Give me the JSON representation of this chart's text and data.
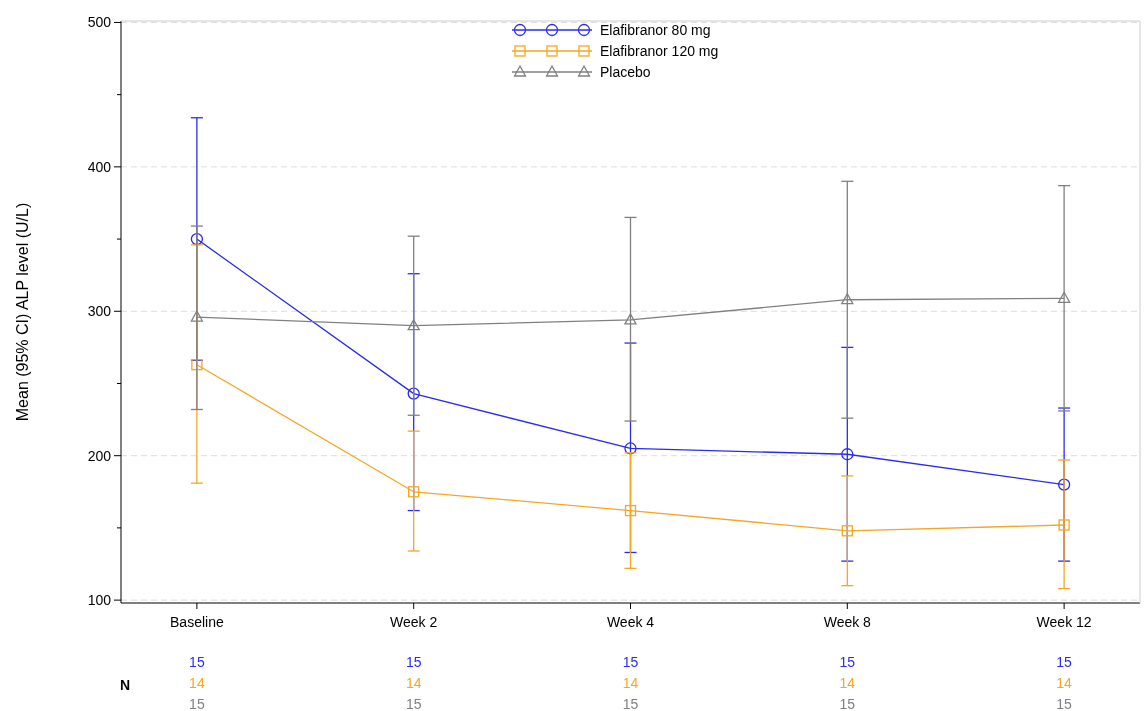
{
  "chart_data": {
    "type": "line",
    "ylabel": "Mean (95% CI) ALP level (U/L)",
    "categories": [
      "Baseline",
      "Week 2",
      "Week 4",
      "Week 8",
      "Week 12"
    ],
    "ylim": [
      98,
      501
    ],
    "yticks": [
      100,
      {
        "value": 150,
        "label": null
      },
      200,
      {
        "value": 250,
        "label": null
      },
      300,
      {
        "value": 350,
        "label": null
      },
      400,
      {
        "value": 450,
        "label": null
      },
      500
    ],
    "grid": "y",
    "legend": "top",
    "line_style": "solid",
    "series": [
      {
        "name": "Elafibranor 80 mg",
        "color": "#2b2bf0",
        "marker": "circle",
        "values": [
          350,
          243,
          205,
          201,
          180
        ],
        "errors": [
          [
            266,
            434
          ],
          [
            162,
            326
          ],
          [
            133,
            278
          ],
          [
            127,
            275
          ],
          [
            127,
            233
          ]
        ]
      },
      {
        "name": "Elafibranor 120 mg",
        "color": "#f5a623",
        "marker": "square",
        "values": [
          263,
          175,
          162,
          148,
          152
        ],
        "errors": [
          [
            181,
            346
          ],
          [
            134,
            217
          ],
          [
            122,
            202
          ],
          [
            110,
            186
          ],
          [
            108,
            197
          ]
        ]
      },
      {
        "name": "Placebo",
        "color": "#808080",
        "marker": "triangle",
        "values": [
          296,
          290,
          294,
          308,
          309
        ],
        "errors": [
          [
            232,
            359
          ],
          [
            228,
            352
          ],
          [
            224,
            365
          ],
          [
            226,
            390
          ],
          [
            231,
            387
          ]
        ]
      }
    ],
    "annotations": [
      "N",
      "15",
      "15",
      "15",
      "15",
      "15",
      "14",
      "14",
      "14",
      "14",
      "14",
      "15",
      "15",
      "15",
      "15",
      "15"
    ]
  }
}
